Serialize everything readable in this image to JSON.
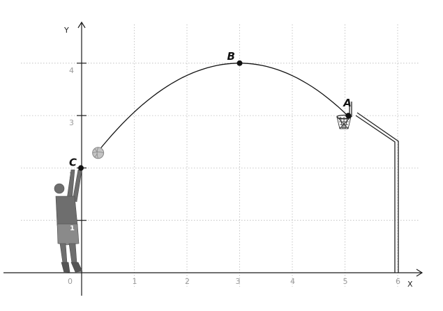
{
  "axes": {
    "x_label": "X",
    "y_label": "Y",
    "origin_label": "0",
    "x_ticks": [
      "1",
      "2",
      "3",
      "4",
      "5",
      "6"
    ],
    "y_ticks": [
      "1",
      "2",
      "3",
      "4"
    ]
  },
  "points": {
    "A": {
      "label": "A",
      "x": 5.05,
      "y": 3.0
    },
    "B": {
      "label": "B",
      "x": 3.0,
      "y": 4.0
    },
    "C": {
      "label": "C",
      "x": 0.0,
      "y": 2.0
    }
  },
  "trajectory": {
    "start": {
      "x": 0.3,
      "y": 2.3
    },
    "apex": {
      "x": 3.0,
      "y": 4.0
    },
    "end": {
      "x": 5.05,
      "y": 3.0
    }
  },
  "ball": {
    "x": 0.3,
    "y": 2.3
  },
  "player": {
    "jersey_number": "1"
  },
  "colors": {
    "grid": "#b8b8b8",
    "axis": "#1a1a1a",
    "curve": "#111111",
    "ball": "#c4c4c4",
    "player": "#6e6e6e",
    "hoop": "#222222"
  }
}
